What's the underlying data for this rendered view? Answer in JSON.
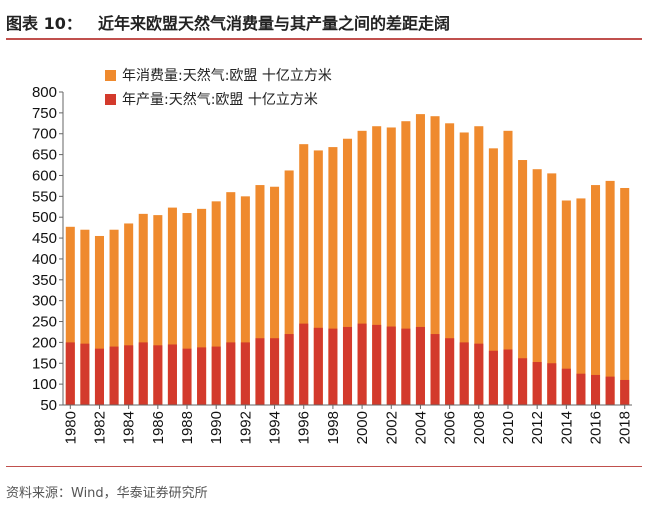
{
  "header": {
    "label": "图表 10：",
    "title": "近年来欧盟天然气消费量与其产量之间的差距走阔"
  },
  "source": "资料来源：Wind，华泰证券研究所",
  "colors": {
    "consumption": "#ef8a2e",
    "production": "#d33a2c",
    "rule": "#c0504d"
  },
  "chart_data": {
    "type": "bar",
    "title": "",
    "xlabel": "",
    "ylabel": "",
    "ylim": [
      50,
      800
    ],
    "yticks": [
      "800",
      "750",
      "700",
      "650",
      "600",
      "550",
      "500",
      "450",
      "400",
      "350",
      "300",
      "250",
      "200",
      "150",
      "100",
      "50"
    ],
    "legend_position": "top-left",
    "grid": false,
    "categories": [
      "1980",
      "1981",
      "1982",
      "1983",
      "1984",
      "1985",
      "1986",
      "1987",
      "1988",
      "1989",
      "1990",
      "1991",
      "1992",
      "1993",
      "1994",
      "1995",
      "1996",
      "1997",
      "1998",
      "1999",
      "2000",
      "2001",
      "2002",
      "2003",
      "2004",
      "2005",
      "2006",
      "2007",
      "2008",
      "2009",
      "2010",
      "2011",
      "2012",
      "2013",
      "2014",
      "2015",
      "2016",
      "2017",
      "2018"
    ],
    "tick_labels": [
      "1980",
      "1982",
      "1984",
      "1986",
      "1988",
      "1990",
      "1992",
      "1994",
      "1996",
      "1998",
      "2000",
      "2002",
      "2004",
      "2006",
      "2008",
      "2010",
      "2012",
      "2014",
      "2016",
      "2018"
    ],
    "series": [
      {
        "name": "年消费量:天然气:欧盟 十亿立方米",
        "values": [
          477,
          470,
          455,
          470,
          485,
          508,
          505,
          523,
          510,
          520,
          538,
          560,
          550,
          577,
          573,
          612,
          675,
          660,
          668,
          688,
          707,
          718,
          715,
          730,
          747,
          742,
          725,
          703,
          718,
          665,
          707,
          637,
          615,
          605,
          540,
          545,
          577,
          587,
          570
        ]
      },
      {
        "name": "年产量:天然气:欧盟 十亿立方米",
        "values": [
          200,
          197,
          185,
          190,
          193,
          200,
          193,
          195,
          185,
          188,
          190,
          200,
          200,
          210,
          210,
          220,
          245,
          235,
          233,
          237,
          245,
          242,
          238,
          233,
          237,
          220,
          210,
          200,
          197,
          180,
          183,
          162,
          153,
          150,
          137,
          125,
          122,
          118,
          110
        ]
      }
    ]
  }
}
